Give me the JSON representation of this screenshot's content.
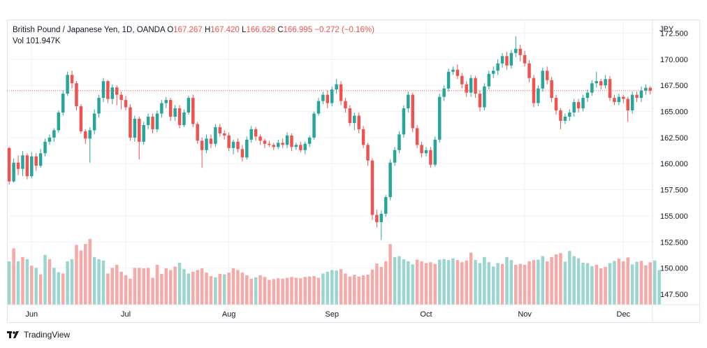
{
  "header": {
    "symbol": "British Pound / Japanese Yen, 1D, OANDA",
    "o_label": "O",
    "o_value": "167.267",
    "h_label": "H",
    "h_value": "167.420",
    "l_label": "L",
    "l_value": "166.628",
    "c_label": "C",
    "c_value": "166.995",
    "change": "−0.272 (−0.16%)",
    "vol_label": "Vol",
    "vol_value": "101.947K"
  },
  "footer": {
    "brand": "TradingView"
  },
  "colors": {
    "up": "#26a69a",
    "down": "#ef5350",
    "vol_up": "#9ad6cf",
    "vol_down": "#f7a9a7",
    "grid": "#f0f3fa",
    "close_line": "#ef5350"
  },
  "chart_data": {
    "type": "candlestick",
    "currency_label": "JPY",
    "ylim": [
      146.5,
      173.8
    ],
    "y_ticks": [
      "172.500",
      "170.000",
      "167.500",
      "165.000",
      "162.500",
      "160.000",
      "157.500",
      "155.000",
      "152.500",
      "150.000",
      "147.500"
    ],
    "x_ticks": [
      {
        "label": "Jun",
        "bar": 5
      },
      {
        "label": "Jul",
        "bar": 26
      },
      {
        "label": "Aug",
        "bar": 49
      },
      {
        "label": "Sep",
        "bar": 72
      },
      {
        "label": "Oct",
        "bar": 93
      },
      {
        "label": "Nov",
        "bar": 115
      },
      {
        "label": "Dec",
        "bar": 137
      }
    ],
    "last_close": 166.995,
    "candles": [
      [
        161.5,
        158.3,
        161.6,
        158.0
      ],
      [
        158.3,
        160.1,
        160.5,
        158.2
      ],
      [
        160.1,
        159.5,
        160.8,
        158.9
      ],
      [
        159.5,
        160.8,
        161.2,
        158.8
      ],
      [
        160.8,
        158.8,
        161.0,
        158.5
      ],
      [
        158.8,
        160.7,
        161.1,
        158.6
      ],
      [
        160.7,
        159.8,
        161.0,
        159.3
      ],
      [
        159.8,
        161.0,
        161.4,
        159.6
      ],
      [
        161.0,
        162.1,
        162.4,
        160.7
      ],
      [
        162.1,
        162.5,
        162.8,
        161.8
      ],
      [
        162.5,
        163.2,
        163.4,
        162.1
      ],
      [
        163.2,
        164.9,
        165.1,
        163.0
      ],
      [
        164.9,
        166.7,
        167.0,
        164.6
      ],
      [
        166.7,
        168.5,
        168.8,
        166.5
      ],
      [
        168.5,
        167.7,
        168.9,
        167.2
      ],
      [
        167.7,
        165.5,
        167.9,
        165.1
      ],
      [
        165.5,
        163.1,
        165.7,
        162.9
      ],
      [
        163.1,
        162.4,
        163.3,
        161.9
      ],
      [
        162.4,
        163.2,
        163.5,
        160.1
      ],
      [
        163.2,
        164.8,
        165.2,
        162.8
      ],
      [
        164.8,
        166.3,
        166.6,
        164.4
      ],
      [
        166.3,
        167.9,
        168.2,
        165.9
      ],
      [
        167.9,
        166.2,
        168.0,
        165.8
      ],
      [
        166.2,
        167.3,
        167.6,
        165.7
      ],
      [
        167.3,
        166.6,
        167.5,
        165.6
      ],
      [
        166.6,
        166.1,
        166.9,
        165.2
      ],
      [
        166.1,
        165.4,
        166.5,
        165.1
      ],
      [
        165.4,
        162.5,
        165.7,
        162.2
      ],
      [
        162.5,
        164.3,
        164.6,
        162.1
      ],
      [
        164.3,
        162.1,
        164.5,
        160.4
      ],
      [
        162.1,
        163.7,
        164.0,
        161.8
      ],
      [
        163.7,
        164.5,
        164.8,
        163.3
      ],
      [
        164.5,
        163.3,
        164.8,
        162.9
      ],
      [
        163.3,
        164.8,
        165.1,
        163.0
      ],
      [
        164.8,
        165.8,
        166.1,
        164.4
      ],
      [
        165.8,
        166.1,
        166.4,
        165.3
      ],
      [
        166.1,
        164.5,
        166.3,
        164.1
      ],
      [
        164.5,
        165.3,
        165.6,
        164.1
      ],
      [
        165.3,
        163.7,
        165.6,
        163.4
      ],
      [
        163.7,
        164.9,
        165.2,
        163.5
      ],
      [
        164.9,
        166.3,
        166.5,
        164.7
      ],
      [
        166.3,
        163.8,
        166.6,
        163.5
      ],
      [
        163.8,
        162.2,
        164.0,
        161.9
      ],
      [
        162.2,
        161.3,
        162.5,
        159.6
      ],
      [
        161.3,
        162.4,
        162.8,
        161.0
      ],
      [
        162.4,
        161.9,
        162.8,
        161.5
      ],
      [
        161.9,
        163.5,
        163.8,
        161.6
      ],
      [
        163.5,
        162.9,
        163.8,
        162.6
      ],
      [
        162.9,
        162.7,
        163.2,
        162.3
      ],
      [
        162.7,
        161.5,
        163.0,
        161.2
      ],
      [
        161.5,
        162.1,
        162.3,
        160.9
      ],
      [
        162.1,
        161.4,
        162.4,
        161.1
      ],
      [
        161.4,
        160.6,
        161.8,
        160.2
      ],
      [
        160.6,
        162.3,
        162.6,
        160.4
      ],
      [
        162.3,
        163.3,
        163.6,
        162.0
      ],
      [
        163.3,
        162.6,
        163.5,
        162.2
      ],
      [
        162.6,
        162.2,
        162.8,
        161.8
      ],
      [
        162.2,
        161.9,
        162.4,
        161.5
      ],
      [
        161.9,
        161.8,
        162.2,
        161.6
      ],
      [
        161.8,
        161.6,
        162.0,
        161.3
      ],
      [
        161.6,
        162.0,
        162.3,
        161.4
      ],
      [
        162.0,
        161.8,
        162.4,
        161.5
      ],
      [
        161.8,
        162.7,
        163.0,
        161.5
      ],
      [
        162.7,
        161.6,
        162.9,
        161.2
      ],
      [
        161.6,
        161.8,
        162.0,
        161.3
      ],
      [
        161.8,
        161.3,
        162.1,
        161.1
      ],
      [
        161.3,
        161.9,
        162.1,
        160.9
      ],
      [
        161.9,
        162.5,
        162.7,
        161.6
      ],
      [
        162.5,
        164.8,
        165.0,
        162.3
      ],
      [
        164.8,
        166.0,
        166.3,
        164.6
      ],
      [
        166.0,
        166.6,
        166.9,
        165.7
      ],
      [
        166.6,
        165.8,
        167.0,
        165.3
      ],
      [
        165.8,
        167.1,
        167.4,
        165.5
      ],
      [
        167.1,
        167.6,
        168.1,
        166.7
      ],
      [
        167.6,
        166.0,
        167.9,
        165.6
      ],
      [
        166.0,
        165.3,
        166.3,
        164.9
      ],
      [
        165.3,
        163.9,
        165.6,
        163.6
      ],
      [
        163.9,
        164.6,
        164.9,
        163.2
      ],
      [
        164.6,
        163.3,
        164.9,
        162.9
      ],
      [
        163.3,
        161.8,
        163.6,
        161.5
      ],
      [
        161.8,
        160.3,
        162.0,
        159.8
      ],
      [
        160.3,
        155.1,
        160.5,
        154.6
      ],
      [
        155.1,
        154.4,
        155.6,
        153.9
      ],
      [
        154.4,
        155.2,
        155.5,
        152.7
      ],
      [
        155.2,
        156.8,
        157.0,
        154.9
      ],
      [
        156.8,
        160.1,
        160.4,
        156.5
      ],
      [
        160.1,
        161.3,
        161.6,
        159.8
      ],
      [
        161.3,
        162.8,
        163.1,
        161.0
      ],
      [
        162.8,
        165.3,
        165.6,
        162.5
      ],
      [
        165.3,
        166.6,
        166.9,
        164.9
      ],
      [
        166.6,
        163.4,
        166.8,
        163.0
      ],
      [
        163.4,
        161.8,
        163.7,
        161.5
      ],
      [
        161.8,
        161.0,
        162.1,
        160.6
      ],
      [
        161.0,
        161.3,
        161.6,
        160.7
      ],
      [
        161.3,
        159.9,
        161.6,
        159.6
      ],
      [
        159.9,
        162.3,
        162.6,
        159.7
      ],
      [
        162.3,
        166.4,
        166.7,
        162.0
      ],
      [
        166.4,
        167.2,
        167.5,
        166.0
      ],
      [
        167.2,
        168.8,
        169.1,
        166.9
      ],
      [
        168.8,
        169.0,
        169.3,
        168.5
      ],
      [
        169.0,
        168.4,
        169.5,
        168.1
      ],
      [
        168.4,
        167.6,
        168.7,
        167.2
      ],
      [
        167.6,
        166.8,
        167.9,
        166.4
      ],
      [
        166.8,
        168.2,
        168.5,
        166.4
      ],
      [
        168.2,
        166.7,
        168.4,
        166.3
      ],
      [
        166.7,
        165.4,
        167.0,
        165.0
      ],
      [
        165.4,
        167.4,
        167.7,
        165.1
      ],
      [
        167.4,
        168.6,
        168.9,
        167.1
      ],
      [
        168.6,
        168.9,
        169.3,
        168.2
      ],
      [
        168.9,
        169.6,
        170.0,
        168.5
      ],
      [
        169.6,
        170.3,
        170.6,
        169.2
      ],
      [
        170.3,
        169.4,
        170.7,
        169.0
      ],
      [
        169.4,
        170.6,
        170.9,
        169.1
      ],
      [
        170.6,
        171.0,
        172.2,
        170.2
      ],
      [
        171.0,
        170.4,
        171.4,
        169.8
      ],
      [
        170.4,
        169.6,
        170.8,
        169.3
      ],
      [
        169.6,
        168.2,
        169.9,
        167.8
      ],
      [
        168.2,
        165.8,
        168.5,
        165.4
      ],
      [
        165.8,
        167.2,
        167.5,
        165.5
      ],
      [
        167.2,
        168.9,
        169.2,
        166.9
      ],
      [
        168.9,
        168.0,
        169.3,
        167.6
      ],
      [
        168.0,
        166.3,
        168.3,
        165.9
      ],
      [
        166.3,
        165.1,
        166.6,
        164.7
      ],
      [
        165.1,
        164.1,
        165.3,
        163.3
      ],
      [
        164.1,
        164.5,
        164.8,
        163.8
      ],
      [
        164.5,
        164.9,
        165.2,
        164.1
      ],
      [
        164.9,
        165.9,
        166.2,
        164.5
      ],
      [
        165.9,
        165.3,
        166.2,
        164.9
      ],
      [
        165.3,
        166.3,
        166.6,
        165.0
      ],
      [
        166.3,
        166.8,
        167.1,
        165.9
      ],
      [
        166.8,
        167.7,
        168.0,
        166.5
      ],
      [
        167.7,
        167.9,
        168.8,
        167.3
      ],
      [
        167.9,
        167.5,
        168.1,
        167.1
      ],
      [
        167.5,
        168.1,
        168.5,
        167.2
      ],
      [
        168.1,
        166.3,
        168.4,
        166.0
      ],
      [
        166.3,
        165.9,
        166.6,
        165.6
      ],
      [
        165.9,
        166.4,
        166.7,
        165.6
      ],
      [
        166.4,
        166.2,
        166.6,
        165.8
      ],
      [
        166.2,
        165.1,
        166.4,
        164.0
      ],
      [
        165.1,
        166.6,
        166.9,
        164.8
      ],
      [
        166.6,
        166.3,
        166.9,
        165.9
      ],
      [
        166.3,
        167.0,
        167.4,
        165.9
      ],
      [
        167.0,
        167.267,
        167.6,
        166.6
      ],
      [
        167.267,
        166.995,
        167.42,
        166.628
      ]
    ],
    "volumes": [
      [
        1,
        true
      ],
      [
        1.3,
        false
      ],
      [
        1,
        true
      ],
      [
        1.1,
        false
      ],
      [
        1.05,
        true
      ],
      [
        0.9,
        false
      ],
      [
        0.85,
        true
      ],
      [
        0.7,
        false
      ],
      [
        1.15,
        true
      ],
      [
        1.05,
        false
      ],
      [
        0.85,
        true
      ],
      [
        0.75,
        true
      ],
      [
        0.72,
        false
      ],
      [
        1.0,
        true
      ],
      [
        1.05,
        true
      ],
      [
        1.38,
        false
      ],
      [
        1.25,
        false
      ],
      [
        1.4,
        false
      ],
      [
        1.52,
        false
      ],
      [
        1.1,
        true
      ],
      [
        1.05,
        true
      ],
      [
        1.02,
        true
      ],
      [
        0.72,
        false
      ],
      [
        0.85,
        false
      ],
      [
        0.92,
        false
      ],
      [
        0.76,
        false
      ],
      [
        0.68,
        false
      ],
      [
        0.6,
        false
      ],
      [
        0.85,
        false
      ],
      [
        0.85,
        false
      ],
      [
        0.84,
        false
      ],
      [
        0.85,
        false
      ],
      [
        0.62,
        false
      ],
      [
        0.92,
        false
      ],
      [
        0.71,
        false
      ],
      [
        0.84,
        false
      ],
      [
        0.8,
        false
      ],
      [
        0.88,
        false
      ],
      [
        0.97,
        true
      ],
      [
        0.82,
        true
      ],
      [
        0.72,
        true
      ],
      [
        0.76,
        false
      ],
      [
        0.8,
        false
      ],
      [
        0.84,
        false
      ],
      [
        0.74,
        false
      ],
      [
        0.66,
        false
      ],
      [
        0.63,
        true
      ],
      [
        0.71,
        false
      ],
      [
        0.7,
        true
      ],
      [
        0.74,
        false
      ],
      [
        0.84,
        false
      ],
      [
        0.8,
        false
      ],
      [
        0.74,
        false
      ],
      [
        0.68,
        false
      ],
      [
        0.6,
        false
      ],
      [
        0.63,
        true
      ],
      [
        0.68,
        false
      ],
      [
        0.64,
        false
      ],
      [
        0.57,
        false
      ],
      [
        0.59,
        false
      ],
      [
        0.61,
        false
      ],
      [
        0.6,
        false
      ],
      [
        0.62,
        false
      ],
      [
        0.64,
        false
      ],
      [
        0.62,
        false
      ],
      [
        0.61,
        false
      ],
      [
        0.64,
        false
      ],
      [
        0.65,
        false
      ],
      [
        0.66,
        false
      ],
      [
        0.62,
        false
      ],
      [
        0.72,
        true
      ],
      [
        0.76,
        true
      ],
      [
        0.8,
        true
      ],
      [
        0.79,
        true
      ],
      [
        0.82,
        false
      ],
      [
        0.72,
        false
      ],
      [
        0.65,
        false
      ],
      [
        0.69,
        false
      ],
      [
        0.65,
        false
      ],
      [
        0.68,
        false
      ],
      [
        0.69,
        false
      ],
      [
        0.81,
        false
      ],
      [
        0.95,
        false
      ],
      [
        0.87,
        false
      ],
      [
        1.0,
        false
      ],
      [
        1.4,
        false
      ],
      [
        1.1,
        true
      ],
      [
        1.12,
        true
      ],
      [
        1.05,
        true
      ],
      [
        1.0,
        true
      ],
      [
        0.93,
        true
      ],
      [
        1.04,
        false
      ],
      [
        1.0,
        false
      ],
      [
        0.96,
        false
      ],
      [
        0.98,
        false
      ],
      [
        0.94,
        false
      ],
      [
        1.04,
        true
      ],
      [
        1.05,
        true
      ],
      [
        1.03,
        true
      ],
      [
        1.07,
        true
      ],
      [
        1.03,
        false
      ],
      [
        0.98,
        false
      ],
      [
        1.02,
        false
      ],
      [
        1.2,
        false
      ],
      [
        1.03,
        true
      ],
      [
        0.96,
        true
      ],
      [
        1.1,
        true
      ],
      [
        0.98,
        true
      ],
      [
        0.88,
        true
      ],
      [
        0.96,
        true
      ],
      [
        0.94,
        false
      ],
      [
        1.1,
        true
      ],
      [
        1.03,
        true
      ],
      [
        0.92,
        false
      ],
      [
        0.94,
        false
      ],
      [
        0.92,
        false
      ],
      [
        1.0,
        false
      ],
      [
        1.03,
        false
      ],
      [
        1.04,
        true
      ],
      [
        1.12,
        true
      ],
      [
        1.0,
        false
      ],
      [
        1.1,
        false
      ],
      [
        1.16,
        false
      ],
      [
        1.19,
        false
      ],
      [
        0.99,
        true
      ],
      [
        1.24,
        true
      ],
      [
        1.12,
        true
      ],
      [
        1.07,
        true
      ],
      [
        0.97,
        true
      ],
      [
        0.96,
        true
      ],
      [
        0.89,
        true
      ],
      [
        0.92,
        false
      ],
      [
        0.84,
        false
      ],
      [
        0.87,
        false
      ],
      [
        0.96,
        true
      ],
      [
        1.01,
        true
      ],
      [
        1.06,
        false
      ],
      [
        1.0,
        false
      ],
      [
        1.09,
        false
      ],
      [
        0.93,
        true
      ],
      [
        0.99,
        true
      ],
      [
        1.01,
        false
      ],
      [
        0.91,
        false
      ],
      [
        0.98,
        false
      ],
      [
        1.02,
        true
      ],
      [
        0.8,
        true
      ]
    ]
  }
}
